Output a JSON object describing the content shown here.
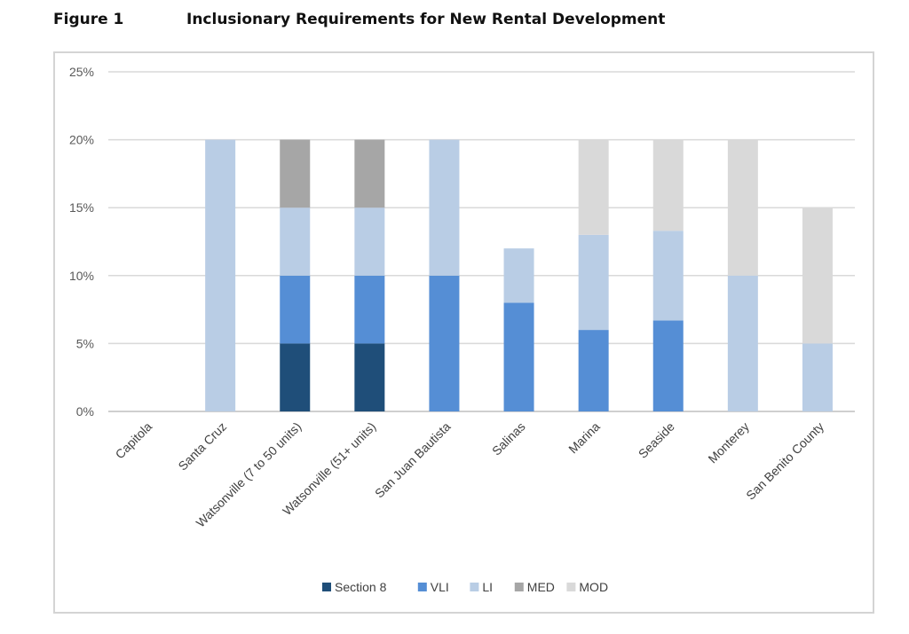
{
  "figure_label": "Figure 1",
  "chart_data": {
    "type": "bar",
    "stacked": true,
    "title": "Inclusionary Requirements for New Rental Development",
    "xlabel": "",
    "ylabel": "",
    "ylim": [
      0,
      25
    ],
    "yticks": [
      "0%",
      "5%",
      "10%",
      "15%",
      "20%",
      "25%"
    ],
    "grid": true,
    "legend_position": "bottom",
    "categories": [
      "Capitola",
      "Santa Cruz",
      "Watsonville (7 to 50 units)",
      "Watsonville (51+ units)",
      "San Juan Bautista",
      "Salinas",
      "Marina",
      "Seaside",
      "Monterey",
      "San Benito County"
    ],
    "series": [
      {
        "name": "Section 8",
        "color": "#1f4e79",
        "values": [
          0,
          0,
          5,
          5,
          0,
          0,
          0,
          0,
          0,
          0
        ]
      },
      {
        "name": "VLI",
        "color": "#558ed5",
        "values": [
          0,
          0,
          5,
          5,
          10,
          8,
          6,
          6.7,
          0,
          0
        ]
      },
      {
        "name": "LI",
        "color": "#b9cde5",
        "values": [
          0,
          20,
          5,
          5,
          10,
          4,
          7,
          6.6,
          10,
          5
        ]
      },
      {
        "name": "MED",
        "color": "#a6a6a6",
        "values": [
          0,
          0,
          5,
          5,
          0,
          0,
          0,
          0,
          0,
          0
        ]
      },
      {
        "name": "MOD",
        "color": "#d9d9d9",
        "values": [
          0,
          0,
          0,
          0,
          0,
          0,
          7,
          6.7,
          10,
          10
        ]
      }
    ]
  }
}
